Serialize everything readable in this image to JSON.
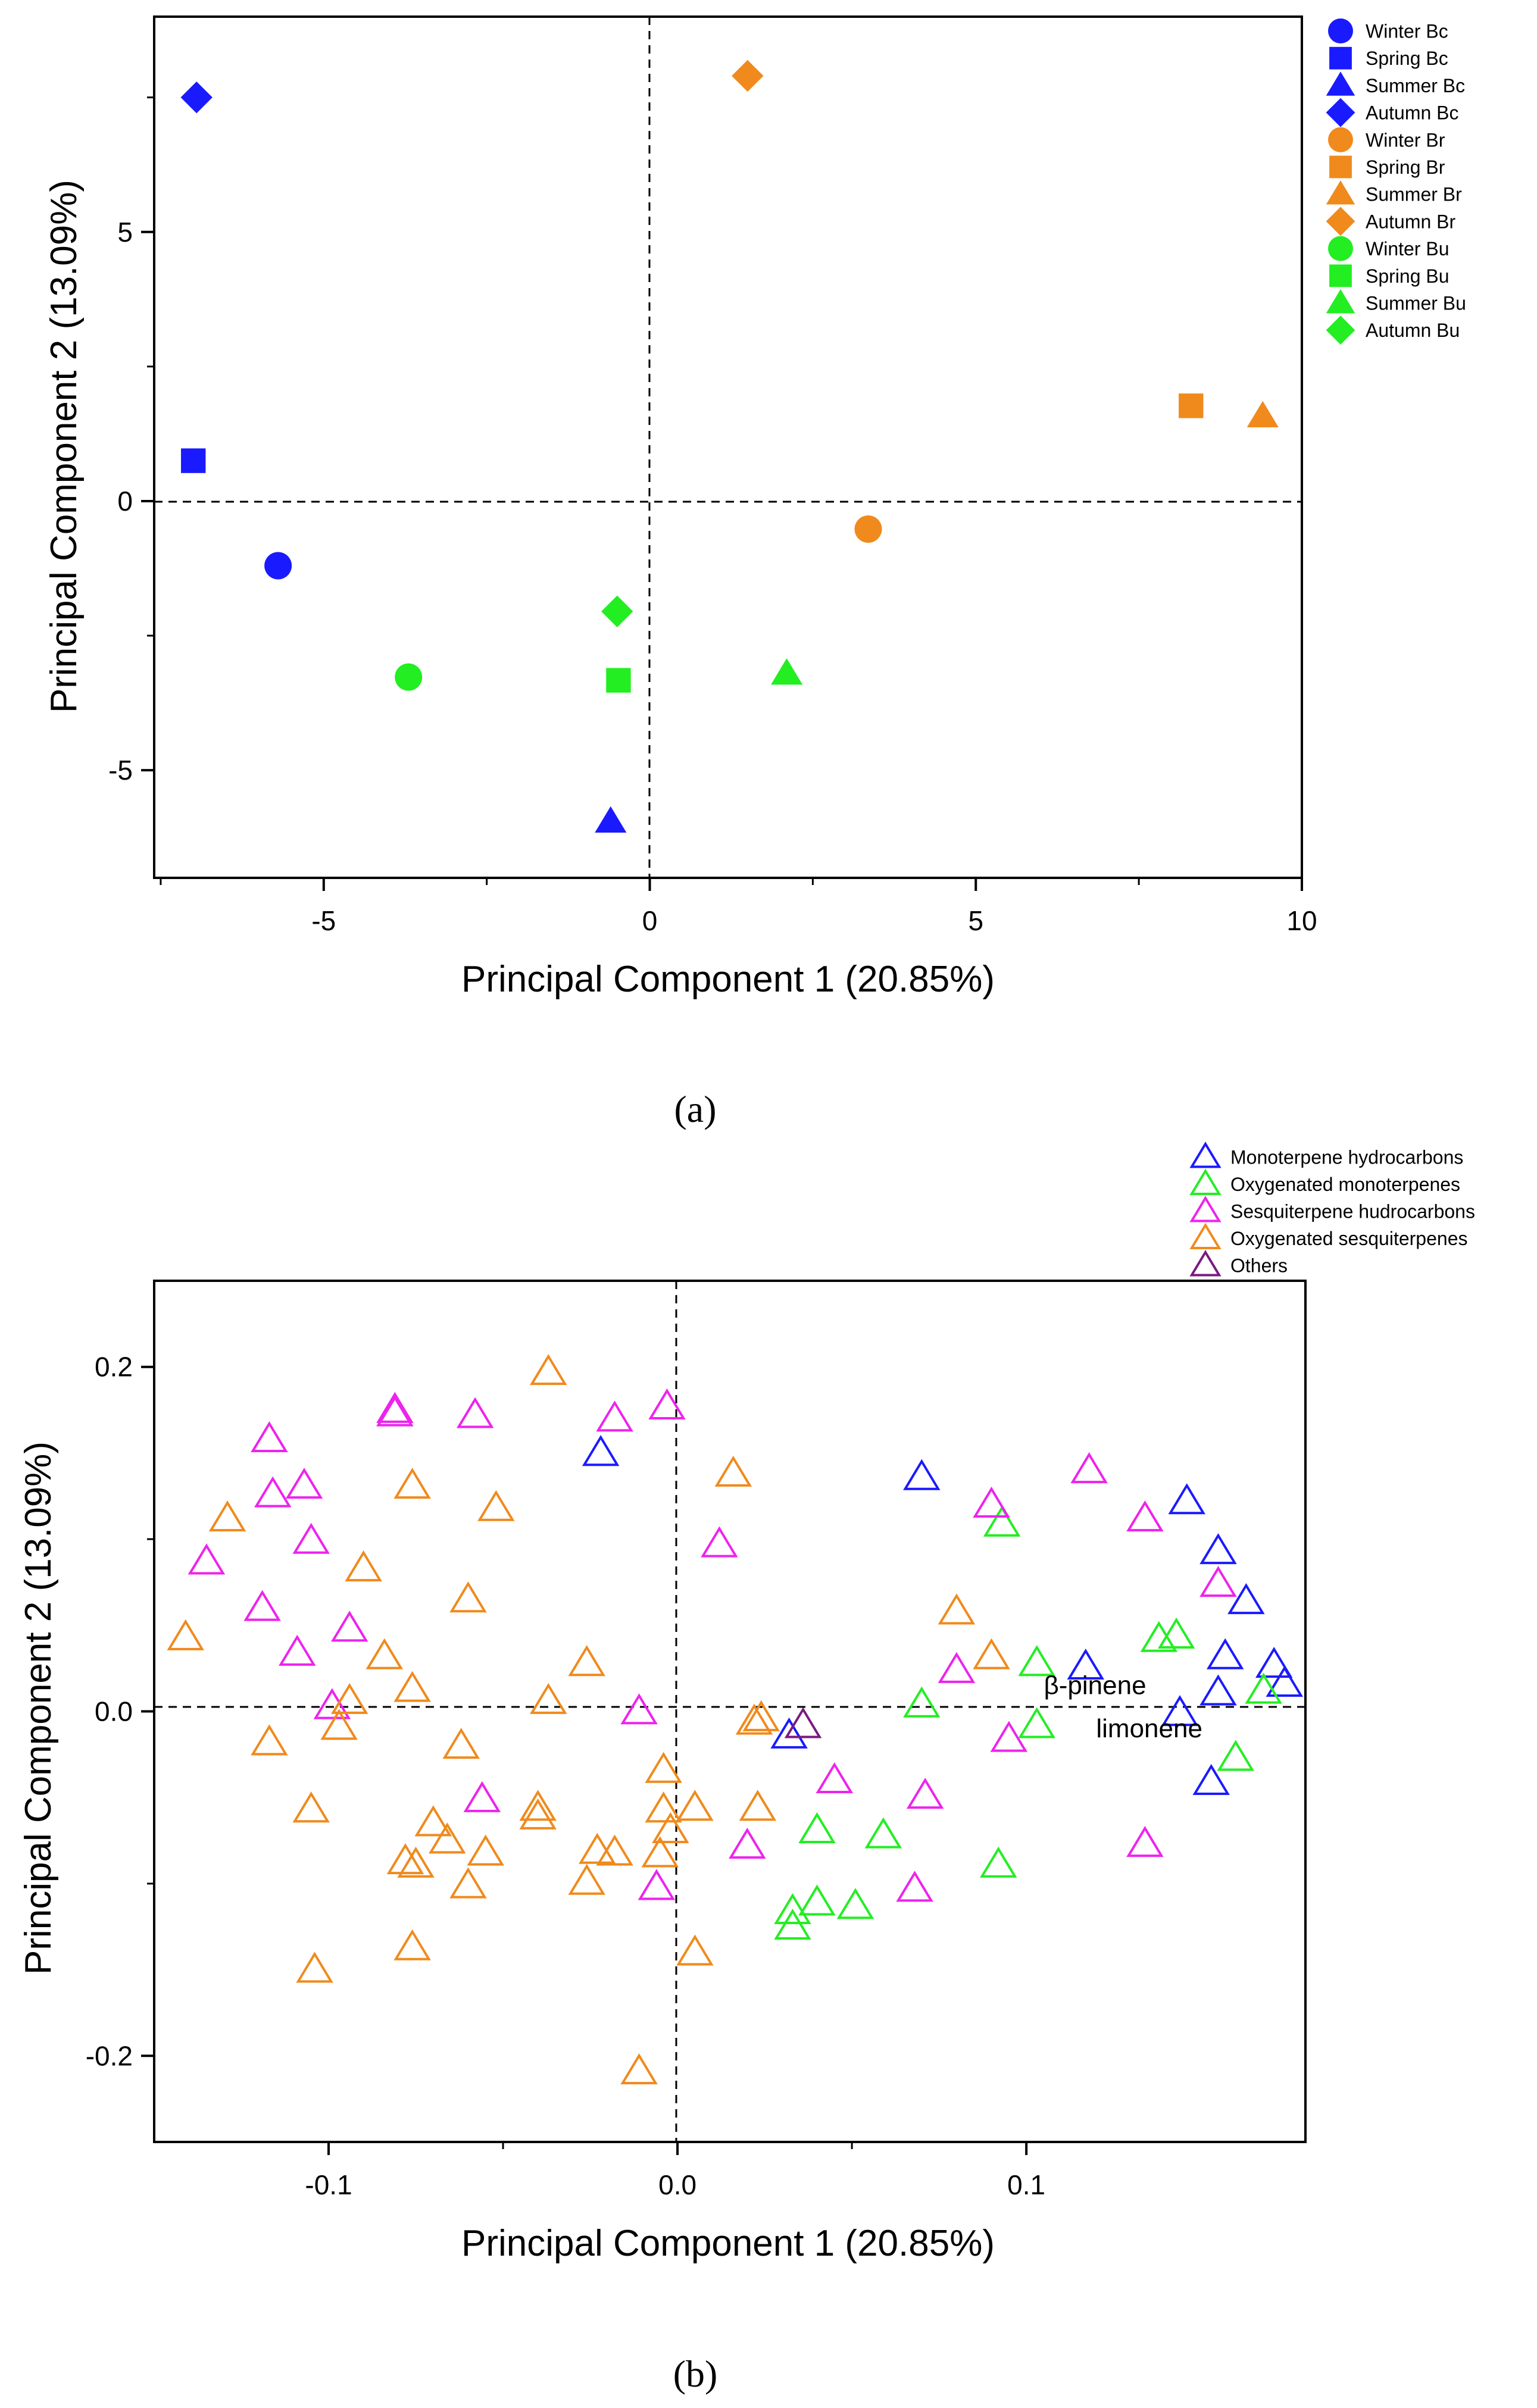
{
  "panel_labels": {
    "a": "(a)",
    "b": "(b)"
  },
  "colors": {
    "blue": "#1a1aff",
    "orange": "#f08a1c",
    "green": "#22ee22",
    "magenta": "#ee22ee",
    "purple": "#7a1a80",
    "axis": "#000000"
  },
  "chart_data": [
    {
      "type": "scatter",
      "title": "",
      "xlabel": "Principal Component 1 (20.85%)",
      "ylabel": "Principal Component 2 (13.09%)",
      "xlim": [
        -7.6,
        10.0
      ],
      "ylim": [
        -7.0,
        9.0
      ],
      "xticks": [
        -5,
        0,
        5,
        10
      ],
      "xtick_labels": [
        "-5",
        "0",
        "5",
        "10"
      ],
      "yticks": [
        -5,
        0,
        5
      ],
      "ytick_labels": [
        "-5",
        "0",
        "5"
      ],
      "grid": false,
      "reference_lines": {
        "x": 0,
        "y": 0,
        "style": "dashed"
      },
      "legend_position": "top-right outside",
      "series": [
        {
          "name": "Winter Bc",
          "color": "blue",
          "marker": "circle",
          "points": [
            [
              -5.7,
              -1.2
            ]
          ]
        },
        {
          "name": "Spring Bc",
          "color": "blue",
          "marker": "square",
          "points": [
            [
              -7.0,
              0.75
            ]
          ]
        },
        {
          "name": "Summer Bc",
          "color": "blue",
          "marker": "triangle",
          "points": [
            [
              -0.6,
              -5.95
            ]
          ]
        },
        {
          "name": "Autumn Bc",
          "color": "blue",
          "marker": "diamond",
          "points": [
            [
              -6.95,
              7.5
            ]
          ]
        },
        {
          "name": "Winter Br",
          "color": "orange",
          "marker": "circle",
          "points": [
            [
              3.35,
              -0.52
            ]
          ]
        },
        {
          "name": "Spring Br",
          "color": "orange",
          "marker": "square",
          "points": [
            [
              8.3,
              1.77
            ]
          ]
        },
        {
          "name": "Summer Br",
          "color": "orange",
          "marker": "triangle",
          "points": [
            [
              9.4,
              1.58
            ]
          ]
        },
        {
          "name": "Autumn Br",
          "color": "orange",
          "marker": "diamond",
          "points": [
            [
              1.5,
              7.9
            ]
          ]
        },
        {
          "name": "Winter Bu",
          "color": "green",
          "marker": "circle",
          "points": [
            [
              -3.7,
              -3.27
            ]
          ]
        },
        {
          "name": "Spring Bu",
          "color": "green",
          "marker": "square",
          "points": [
            [
              -0.48,
              -3.33
            ]
          ]
        },
        {
          "name": "Summer Bu",
          "color": "green",
          "marker": "triangle",
          "points": [
            [
              2.1,
              -3.2
            ]
          ]
        },
        {
          "name": "Autumn Bu",
          "color": "green",
          "marker": "diamond",
          "points": [
            [
              -0.5,
              -2.05
            ]
          ]
        }
      ]
    },
    {
      "type": "scatter",
      "title": "",
      "xlabel": "Principal Component 1 (20.85%)",
      "ylabel": "Principal Component 2 (13.09%)",
      "xlim": [
        -0.15,
        0.18
      ],
      "ylim": [
        -0.25,
        0.25
      ],
      "xticks": [
        -0.1,
        0.0,
        0.1
      ],
      "xtick_labels": [
        "-0.1",
        "0.0",
        "0.1"
      ],
      "yticks": [
        -0.2,
        0.0,
        0.2
      ],
      "ytick_labels": [
        "-0.2",
        "0.0",
        "0.2"
      ],
      "grid": false,
      "reference_lines": {
        "x": 0,
        "y": 0,
        "style": "dashed"
      },
      "legend_position": "top-right outside",
      "annotations": [
        {
          "text": "β-pinene",
          "x": 0.105,
          "y": 0.01
        },
        {
          "text": "limonene",
          "x": 0.12,
          "y": -0.015
        }
      ],
      "series": [
        {
          "name": "Monoterpene hydrocarbons",
          "color": "blue",
          "marker": "open-triangle",
          "points": [
            [
              -0.022,
              0.15
            ],
            [
              0.07,
              0.136
            ],
            [
              0.146,
              0.122
            ],
            [
              0.155,
              0.093
            ],
            [
              0.163,
              0.064
            ],
            [
              0.157,
              0.032
            ],
            [
              0.171,
              0.027
            ],
            [
              0.174,
              0.016
            ],
            [
              0.155,
              0.011
            ],
            [
              0.144,
              -0.001
            ],
            [
              0.117,
              0.026
            ],
            [
              0.032,
              -0.014
            ],
            [
              0.153,
              -0.041
            ]
          ]
        },
        {
          "name": "Oxygenated monoterpenes",
          "color": "green",
          "marker": "open-triangle",
          "points": [
            [
              0.093,
              0.109
            ],
            [
              0.138,
              0.042
            ],
            [
              0.143,
              0.044
            ],
            [
              0.103,
              0.028
            ],
            [
              0.168,
              0.012
            ],
            [
              0.07,
              0.004
            ],
            [
              0.103,
              -0.008
            ],
            [
              0.16,
              -0.027
            ],
            [
              0.04,
              -0.069
            ],
            [
              0.059,
              -0.072
            ],
            [
              0.092,
              -0.089
            ],
            [
              0.04,
              -0.111
            ],
            [
              0.051,
              -0.113
            ],
            [
              0.033,
              -0.116
            ],
            [
              0.033,
              -0.125
            ]
          ]
        },
        {
          "name": "Sesquiterpene hudrocarbons",
          "color": "magenta",
          "marker": "open-triangle",
          "points": [
            [
              -0.117,
              0.158
            ],
            [
              -0.081,
              0.173
            ],
            [
              -0.081,
              0.175
            ],
            [
              -0.058,
              0.172
            ],
            [
              -0.018,
              0.17
            ],
            [
              -0.003,
              0.177
            ],
            [
              -0.116,
              0.126
            ],
            [
              -0.107,
              0.131
            ],
            [
              -0.105,
              0.099
            ],
            [
              0.012,
              0.097
            ],
            [
              -0.135,
              0.087
            ],
            [
              -0.119,
              0.06
            ],
            [
              -0.094,
              0.048
            ],
            [
              -0.109,
              0.034
            ],
            [
              -0.099,
              0.003
            ],
            [
              -0.011,
              0.0
            ],
            [
              0.118,
              0.14
            ],
            [
              0.09,
              0.12
            ],
            [
              0.134,
              0.112
            ],
            [
              0.155,
              0.074
            ],
            [
              0.08,
              0.024
            ],
            [
              0.095,
              -0.016
            ],
            [
              0.045,
              -0.04
            ],
            [
              0.071,
              -0.049
            ],
            [
              -0.056,
              -0.051
            ],
            [
              0.02,
              -0.078
            ],
            [
              0.068,
              -0.103
            ],
            [
              -0.006,
              -0.102
            ],
            [
              0.134,
              -0.077
            ]
          ]
        },
        {
          "name": "Oxygenated sesquiterpenes",
          "color": "orange",
          "marker": "open-triangle",
          "points": [
            [
              -0.037,
              0.197
            ],
            [
              0.016,
              0.138
            ],
            [
              -0.076,
              0.131
            ],
            [
              -0.052,
              0.118
            ],
            [
              -0.129,
              0.112
            ],
            [
              -0.09,
              0.083
            ],
            [
              -0.06,
              0.065
            ],
            [
              0.08,
              0.058
            ],
            [
              -0.141,
              0.043
            ],
            [
              -0.084,
              0.032
            ],
            [
              0.09,
              0.032
            ],
            [
              -0.026,
              0.028
            ],
            [
              -0.076,
              0.013
            ],
            [
              -0.094,
              0.006
            ],
            [
              -0.037,
              0.006
            ],
            [
              -0.097,
              -0.009
            ],
            [
              0.022,
              -0.006
            ],
            [
              0.024,
              -0.004
            ],
            [
              -0.117,
              -0.018
            ],
            [
              -0.062,
              -0.02
            ],
            [
              -0.004,
              -0.034
            ],
            [
              -0.105,
              -0.057
            ],
            [
              -0.04,
              -0.056
            ],
            [
              -0.04,
              -0.061
            ],
            [
              -0.004,
              -0.057
            ],
            [
              0.005,
              -0.056
            ],
            [
              0.023,
              -0.056
            ],
            [
              -0.07,
              -0.065
            ],
            [
              -0.002,
              -0.069
            ],
            [
              -0.066,
              -0.075
            ],
            [
              -0.078,
              -0.087
            ],
            [
              -0.075,
              -0.089
            ],
            [
              -0.055,
              -0.082
            ],
            [
              -0.023,
              -0.081
            ],
            [
              -0.018,
              -0.082
            ],
            [
              -0.005,
              -0.083
            ],
            [
              -0.026,
              -0.099
            ],
            [
              -0.06,
              -0.101
            ],
            [
              -0.076,
              -0.137
            ],
            [
              -0.104,
              -0.15
            ],
            [
              0.005,
              -0.14
            ],
            [
              -0.011,
              -0.209
            ]
          ]
        },
        {
          "name": "Others",
          "color": "purple",
          "marker": "open-triangle",
          "points": [
            [
              0.036,
              -0.008
            ]
          ]
        }
      ]
    }
  ]
}
